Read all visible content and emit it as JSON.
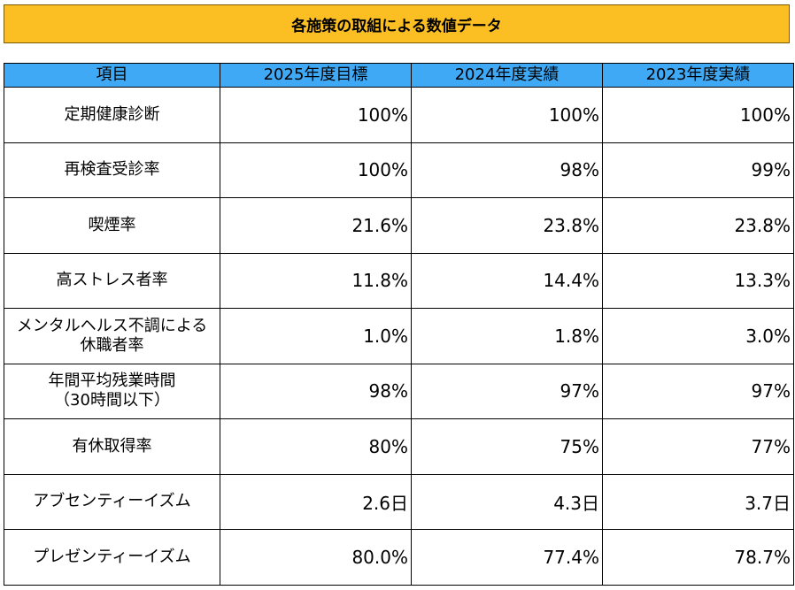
{
  "title": "各施策の取組による数値データ",
  "columns": [
    "項目",
    "2025年度目標",
    "2024年度実績",
    "2023年度実績"
  ],
  "rows": [
    {
      "item": "定期健康診断",
      "v2025": "100%",
      "v2024": "100%",
      "v2023": "100%"
    },
    {
      "item": "再検査受診率",
      "v2025": "100%",
      "v2024": "98%",
      "v2023": "99%"
    },
    {
      "item": "喫煙率",
      "v2025": "21.6%",
      "v2024": "23.8%",
      "v2023": "23.8%"
    },
    {
      "item": "高ストレス者率",
      "v2025": "11.8%",
      "v2024": "14.4%",
      "v2023": "13.3%"
    },
    {
      "item": "メンタルヘルス不調による\n休職者率",
      "v2025": "1.0%",
      "v2024": "1.8%",
      "v2023": "3.0%"
    },
    {
      "item": "年間平均残業時間\n（30時間以下）",
      "v2025": "98%",
      "v2024": "97%",
      "v2023": "97%"
    },
    {
      "item": "有休取得率",
      "v2025": "80%",
      "v2024": "75%",
      "v2023": "77%"
    },
    {
      "item": "アブセンティーイズム",
      "v2025": "2.6日",
      "v2024": "4.3日",
      "v2023": "3.7日"
    },
    {
      "item": "プレゼンティーイズム",
      "v2025": "80.0%",
      "v2024": "77.4%",
      "v2023": "78.7%"
    }
  ],
  "colors": {
    "title_bg": "#fbbf24",
    "header_bg": "#3fa9f5"
  }
}
